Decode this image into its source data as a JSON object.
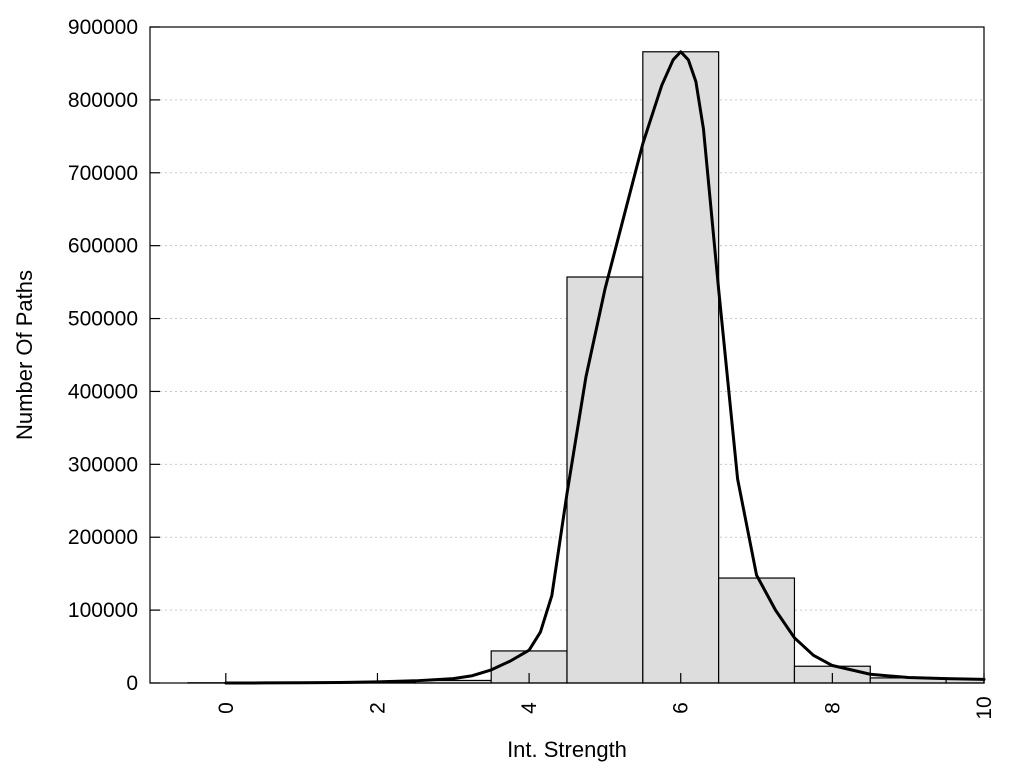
{
  "chart_data": {
    "type": "bar",
    "title": "",
    "xlabel": "Int. Strength",
    "ylabel": "Number Of Paths",
    "xlim": [
      -1,
      10
    ],
    "ylim": [
      0,
      900000
    ],
    "x_ticks": [
      0,
      2,
      4,
      6,
      8,
      10
    ],
    "x_tick_labels": [
      "0",
      "2",
      "4",
      "6",
      "8",
      "10"
    ],
    "y_ticks": [
      0,
      100000,
      200000,
      300000,
      400000,
      500000,
      600000,
      700000,
      800000,
      900000
    ],
    "y_tick_labels": [
      "0",
      "100000",
      "200000",
      "300000",
      "400000",
      "500000",
      "600000",
      "700000",
      "800000",
      "900000"
    ],
    "grid": "horizontal-dotted",
    "bars": {
      "centers": [
        0,
        1,
        2,
        3,
        4,
        5,
        6,
        7,
        8,
        9,
        10
      ],
      "width": 1,
      "values": [
        300,
        400,
        800,
        3500,
        44000,
        557000,
        866000,
        144000,
        23000,
        7000,
        5000
      ],
      "color": "#dddddd",
      "edge_color": "#000000"
    },
    "series": [
      {
        "type": "line",
        "x": [
          0,
          0.5,
          1,
          1.5,
          2,
          2.5,
          3,
          3.25,
          3.5,
          3.75,
          4,
          4.15,
          4.3,
          4.5,
          4.75,
          5,
          5.25,
          5.5,
          5.75,
          5.9,
          6,
          6.1,
          6.2,
          6.3,
          6.5,
          6.75,
          7,
          7.25,
          7.5,
          7.75,
          8,
          8.5,
          9,
          9.5,
          10
        ],
        "y": [
          0,
          100,
          300,
          700,
          1500,
          3000,
          6000,
          10000,
          18000,
          30000,
          45000,
          70000,
          120000,
          260000,
          420000,
          540000,
          640000,
          740000,
          820000,
          855000,
          866000,
          855000,
          825000,
          760000,
          540000,
          280000,
          148000,
          100000,
          62000,
          38000,
          24000,
          12000,
          7500,
          6000,
          5000
        ],
        "color": "#000000"
      }
    ]
  }
}
